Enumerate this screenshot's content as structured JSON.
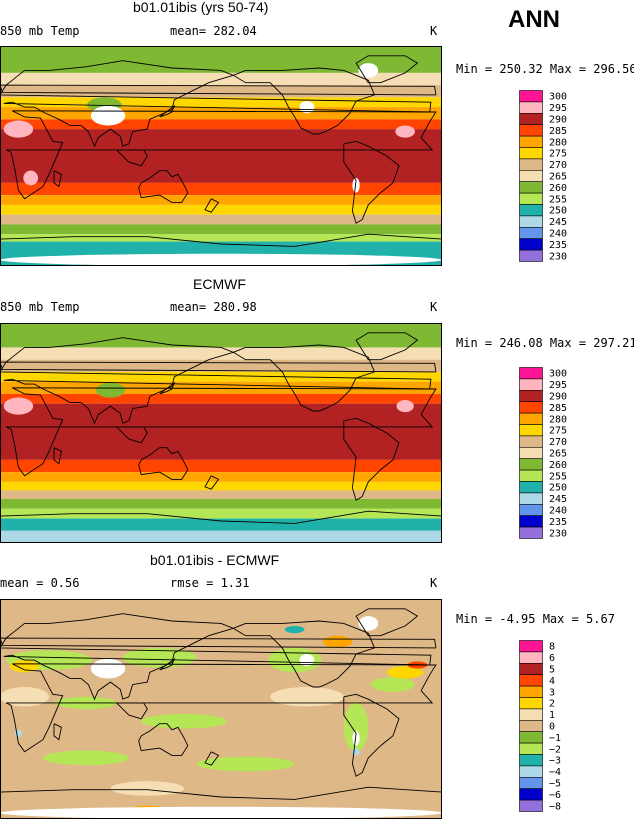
{
  "overall_label": "ANN",
  "land_outline_color": "#000000",
  "chart_data": [
    {
      "type": "heatmap",
      "title": "b01.01ibis (yrs 50-74)",
      "variable_label": "850 mb Temp",
      "stat_text": "mean= 282.04",
      "units": "K",
      "minmax_text": "Min = 250.32 Max = 296.56",
      "summary": {
        "mean": 282.04,
        "min": 250.32,
        "max": 296.56
      },
      "legend": {
        "levels": [
          "300",
          "295",
          "290",
          "285",
          "280",
          "275",
          "270",
          "265",
          "260",
          "255",
          "250",
          "245",
          "240",
          "235",
          "230"
        ],
        "colors": [
          "#ff1493",
          "#ffb6c1",
          "#b22222",
          "#ff4500",
          "#ffa500",
          "#ffd700",
          "#deb887",
          "#f5deb3",
          "#7fb832",
          "#b5e655",
          "#20b2aa",
          "#add8e6",
          "#6495ed",
          "#0000cd",
          "#9370db"
        ]
      },
      "field": {
        "bands": [
          {
            "value": 262,
            "lat_top": 90,
            "lat_bot": 68
          },
          {
            "value": 268,
            "lat_top": 68,
            "lat_bot": 58
          },
          {
            "value": 272,
            "lat_top": 58,
            "lat_bot": 48
          },
          {
            "value": 278,
            "lat_top": 48,
            "lat_bot": 40
          },
          {
            "value": 283,
            "lat_top": 40,
            "lat_bot": 30
          },
          {
            "value": 288,
            "lat_top": 30,
            "lat_bot": 22
          },
          {
            "value": 292,
            "lat_top": 22,
            "lat_bot": -22
          },
          {
            "value": 288,
            "lat_top": -22,
            "lat_bot": -32
          },
          {
            "value": 283,
            "lat_top": -32,
            "lat_bot": -40
          },
          {
            "value": 277,
            "lat_top": -40,
            "lat_bot": -48
          },
          {
            "value": 271,
            "lat_top": -48,
            "lat_bot": -56
          },
          {
            "value": 264,
            "lat_top": -56,
            "lat_bot": -64
          },
          {
            "value": 257,
            "lat_top": -64,
            "lat_bot": -70
          },
          {
            "value": 250,
            "lat_top": -70,
            "lat_bot": -90
          }
        ],
        "blobs": [
          {
            "value": 297,
            "lon": 15,
            "lat": 22,
            "rx": 12,
            "ry": 7
          },
          {
            "value": 297,
            "lon": 25,
            "lat": -18,
            "rx": 6,
            "ry": 6
          },
          {
            "value": 297,
            "lon": 330,
            "lat": 20,
            "rx": 8,
            "ry": 5
          },
          {
            "value": 262,
            "lon": 85,
            "lat": 42,
            "rx": 14,
            "ry": 6
          }
        ],
        "missing": [
          {
            "lon": 88,
            "lat": 33,
            "rx": 14,
            "ry": 8
          },
          {
            "lon": 300,
            "lat": 70,
            "rx": 8,
            "ry": 6
          },
          {
            "lon": 250,
            "lat": 40,
            "rx": 6,
            "ry": 5
          },
          {
            "lon": 290,
            "lat": -24,
            "rx": 3,
            "ry": 6
          },
          {
            "lon": 180,
            "lat": -85,
            "rx": 180,
            "ry": 5
          }
        ]
      }
    },
    {
      "type": "heatmap",
      "title": "ECMWF",
      "variable_label": "850 mb Temp",
      "stat_text": "mean= 280.98",
      "units": "K",
      "minmax_text": "Min = 246.08 Max = 297.21",
      "summary": {
        "mean": 280.98,
        "min": 246.08,
        "max": 297.21
      },
      "legend": {
        "levels": [
          "300",
          "295",
          "290",
          "285",
          "280",
          "275",
          "270",
          "265",
          "260",
          "255",
          "250",
          "245",
          "240",
          "235",
          "230"
        ],
        "colors": [
          "#ff1493",
          "#ffb6c1",
          "#b22222",
          "#ff4500",
          "#ffa500",
          "#ffd700",
          "#deb887",
          "#f5deb3",
          "#7fb832",
          "#b5e655",
          "#20b2aa",
          "#add8e6",
          "#6495ed",
          "#0000cd",
          "#9370db"
        ]
      },
      "field": {
        "bands": [
          {
            "value": 262,
            "lat_top": 90,
            "lat_bot": 70
          },
          {
            "value": 267,
            "lat_top": 70,
            "lat_bot": 60
          },
          {
            "value": 272,
            "lat_top": 60,
            "lat_bot": 50
          },
          {
            "value": 277,
            "lat_top": 50,
            "lat_bot": 42
          },
          {
            "value": 282,
            "lat_top": 42,
            "lat_bot": 32
          },
          {
            "value": 287,
            "lat_top": 32,
            "lat_bot": 24
          },
          {
            "value": 292,
            "lat_top": 24,
            "lat_bot": -22
          },
          {
            "value": 287,
            "lat_top": -22,
            "lat_bot": -32
          },
          {
            "value": 282,
            "lat_top": -32,
            "lat_bot": -40
          },
          {
            "value": 277,
            "lat_top": -40,
            "lat_bot": -47
          },
          {
            "value": 271,
            "lat_top": -47,
            "lat_bot": -54
          },
          {
            "value": 264,
            "lat_top": -54,
            "lat_bot": -62
          },
          {
            "value": 257,
            "lat_top": -62,
            "lat_bot": -70
          },
          {
            "value": 252,
            "lat_top": -70,
            "lat_bot": -80
          },
          {
            "value": 247,
            "lat_top": -80,
            "lat_bot": -90
          }
        ],
        "blobs": [
          {
            "value": 297,
            "lon": 15,
            "lat": 22,
            "rx": 12,
            "ry": 7
          },
          {
            "value": 297,
            "lon": 330,
            "lat": 22,
            "rx": 7,
            "ry": 5
          },
          {
            "value": 262,
            "lon": 90,
            "lat": 35,
            "rx": 12,
            "ry": 6
          }
        ],
        "missing": []
      }
    },
    {
      "type": "heatmap",
      "title": "b01.01ibis - ECMWF",
      "variable_label": "mean =   0.56",
      "stat_text": "rmse =   1.31",
      "units": "K",
      "minmax_text": "Min =  -4.95 Max =   5.67",
      "summary": {
        "mean": 0.56,
        "rmse": 1.31,
        "min": -4.95,
        "max": 5.67
      },
      "legend": {
        "levels": [
          "8",
          "6",
          "5",
          "4",
          "3",
          "2",
          "1",
          "0",
          "−1",
          "−2",
          "−3",
          "−4",
          "−5",
          "−6",
          "−8"
        ],
        "colors": [
          "#ff1493",
          "#ffb6c1",
          "#b22222",
          "#ff4500",
          "#ffa500",
          "#ffd700",
          "#f5deb3",
          "#deb887",
          "#7fb832",
          "#b5e655",
          "#20b2aa",
          "#add8e6",
          "#6495ed",
          "#0000cd",
          "#9370db"
        ]
      },
      "field": {
        "bands": [
          {
            "value": 0.5,
            "lat_top": 90,
            "lat_bot": -90
          }
        ],
        "blobs": [
          {
            "value": -1.5,
            "lon": 40,
            "lat": 40,
            "rx": 35,
            "ry": 8
          },
          {
            "value": -1.5,
            "lon": 130,
            "lat": 42,
            "rx": 30,
            "ry": 8
          },
          {
            "value": -1.5,
            "lon": 240,
            "lat": 40,
            "rx": 22,
            "ry": 10
          },
          {
            "value": -1.5,
            "lon": 320,
            "lat": 20,
            "rx": 18,
            "ry": 6
          },
          {
            "value": -1.5,
            "lon": 70,
            "lat": 5,
            "rx": 25,
            "ry": 5
          },
          {
            "value": -1.5,
            "lon": 150,
            "lat": -10,
            "rx": 35,
            "ry": 6
          },
          {
            "value": -1.5,
            "lon": 200,
            "lat": -45,
            "rx": 40,
            "ry": 6
          },
          {
            "value": -1.5,
            "lon": 70,
            "lat": -40,
            "rx": 35,
            "ry": 6
          },
          {
            "value": -1.5,
            "lon": 290,
            "lat": -15,
            "rx": 10,
            "ry": 20
          },
          {
            "value": 1.5,
            "lon": 20,
            "lat": 10,
            "rx": 20,
            "ry": 8
          },
          {
            "value": 1.5,
            "lon": 250,
            "lat": 10,
            "rx": 30,
            "ry": 8
          },
          {
            "value": 1.5,
            "lon": 120,
            "lat": -65,
            "rx": 30,
            "ry": 6
          },
          {
            "value": 2.5,
            "lon": 20,
            "lat": 35,
            "rx": 12,
            "ry": 5
          },
          {
            "value": 2.5,
            "lon": 330,
            "lat": 30,
            "rx": 15,
            "ry": 5
          },
          {
            "value": 3.5,
            "lon": 275,
            "lat": 55,
            "rx": 12,
            "ry": 5
          },
          {
            "value": 4.5,
            "lon": 340,
            "lat": 36,
            "rx": 8,
            "ry": 3
          },
          {
            "value": 3.5,
            "lon": 120,
            "lat": -82,
            "rx": 15,
            "ry": 3
          },
          {
            "value": -2.5,
            "lon": 240,
            "lat": 65,
            "rx": 8,
            "ry": 3
          },
          {
            "value": -3.5,
            "lon": 15,
            "lat": -20,
            "rx": 3,
            "ry": 3
          },
          {
            "value": -3.5,
            "lon": 290,
            "lat": -35,
            "rx": 3,
            "ry": 3
          }
        ],
        "missing": [
          {
            "lon": 88,
            "lat": 33,
            "rx": 14,
            "ry": 8
          },
          {
            "lon": 300,
            "lat": 70,
            "rx": 8,
            "ry": 6
          },
          {
            "lon": 250,
            "lat": 40,
            "rx": 6,
            "ry": 5
          },
          {
            "lon": 290,
            "lat": -24,
            "rx": 3,
            "ry": 6
          },
          {
            "lon": 180,
            "lat": -85,
            "rx": 180,
            "ry": 5
          }
        ]
      }
    }
  ]
}
